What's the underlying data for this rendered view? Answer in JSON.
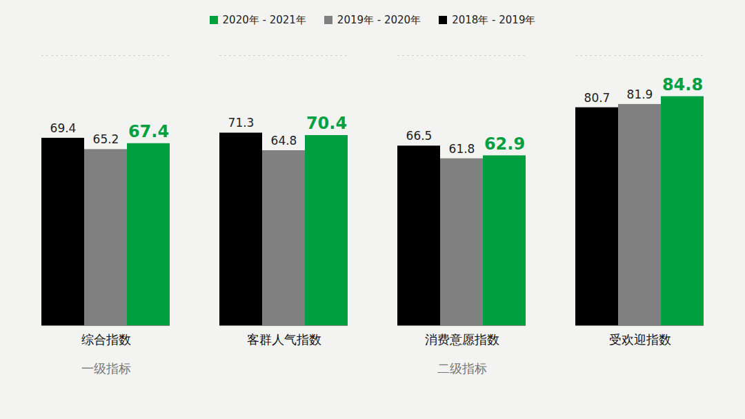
{
  "chart_data": {
    "type": "bar",
    "categories": [
      "综合指数",
      "客群人气指数",
      "消费意愿指数",
      "受欢迎指数"
    ],
    "series": [
      {
        "name": "2020年 - 2021年",
        "color": "#00a040",
        "values": [
          67.4,
          70.4,
          62.9,
          84.8
        ]
      },
      {
        "name": "2019年 - 2020年",
        "color": "#808080",
        "values": [
          65.2,
          64.8,
          61.8,
          81.9
        ]
      },
      {
        "name": "2018年 - 2019年",
        "color": "#000000",
        "values": [
          69.4,
          71.3,
          66.5,
          80.7
        ]
      }
    ],
    "groups": [
      {
        "label": "一级指标",
        "categories": [
          "综合指数"
        ]
      },
      {
        "label": "二级指标",
        "categories": [
          "客群人气指数",
          "消费意愿指数",
          "受欢迎指数"
        ]
      }
    ],
    "ylim": [
      0,
      100
    ],
    "data_labels": true,
    "tick_labels": "x",
    "legend": "top"
  }
}
